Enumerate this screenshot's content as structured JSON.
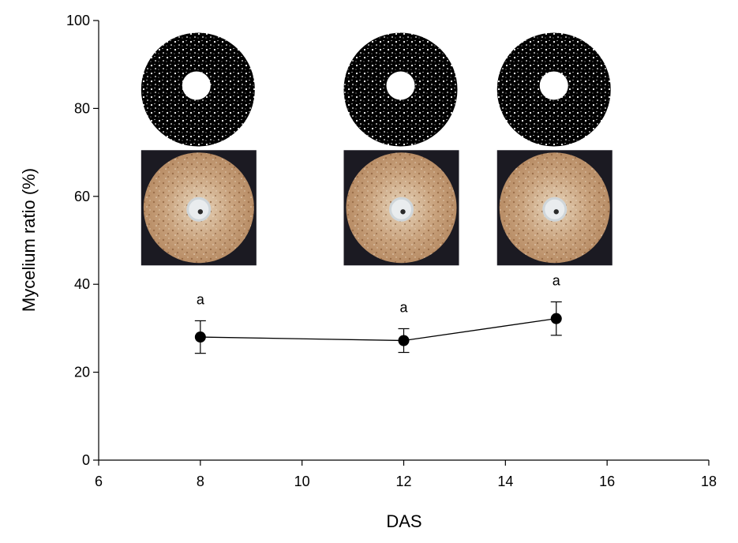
{
  "chart_data": {
    "type": "scatter",
    "xlabel": "DAS",
    "ylabel": "Mycelium ratio (%)",
    "xlim": [
      6,
      18
    ],
    "ylim": [
      0,
      100
    ],
    "xticks": [
      "6",
      "8",
      "10",
      "12",
      "14",
      "16",
      "18"
    ],
    "yticks": [
      "0",
      "20",
      "40",
      "60",
      "80",
      "100"
    ],
    "grid": false,
    "series": [
      {
        "x": [
          8,
          12,
          15
        ],
        "y": [
          28,
          27.2,
          32.2
        ],
        "yerr": [
          3.7,
          2.7,
          3.8
        ],
        "annotations": [
          "a",
          "a",
          "a"
        ],
        "connected": true
      }
    ],
    "inset_images": [
      {
        "x": 8,
        "kind": "binary-mask-and-photo"
      },
      {
        "x": 12,
        "kind": "binary-mask-and-photo"
      },
      {
        "x": 15,
        "kind": "binary-mask-and-photo"
      }
    ],
    "colors": {
      "line": "#000000",
      "marker": "#000000",
      "photo_bg": "#1b1a22",
      "substrate": "#c8a27c"
    }
  }
}
